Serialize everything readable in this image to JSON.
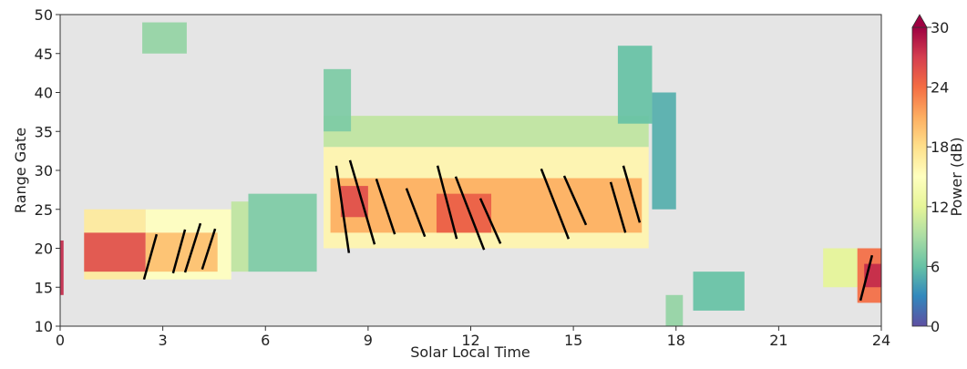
{
  "chart_data": {
    "type": "heatmap",
    "xlabel": "Solar Local Time",
    "ylabel": "Range Gate",
    "xlim": [
      0,
      24
    ],
    "xticks": [
      0,
      3,
      6,
      9,
      12,
      15,
      18,
      21,
      24
    ],
    "ylim": [
      10,
      50
    ],
    "yticks": [
      10,
      15,
      20,
      25,
      30,
      35,
      40,
      45,
      50
    ],
    "background": "#e5e5e5",
    "colorbar": {
      "label": "Power (dB)",
      "clim": [
        0,
        30
      ],
      "ticks": [
        0,
        6,
        12,
        18,
        24,
        30
      ],
      "extend": "max",
      "colormap": [
        "#5e4fa2",
        "#3288bd",
        "#66c2a5",
        "#abdda4",
        "#e6f598",
        "#ffffbf",
        "#fee08b",
        "#fdae61",
        "#f46d43",
        "#d53e4f",
        "#9e0142"
      ]
    },
    "cells": [
      {
        "x": [
          0,
          0.1
        ],
        "y": [
          14,
          21
        ],
        "value": 28
      },
      {
        "x": [
          0.7,
          2.5
        ],
        "y": [
          16,
          25
        ],
        "value": 17
      },
      {
        "x": [
          0.7,
          2.5
        ],
        "y": [
          17,
          22
        ],
        "value": 26
      },
      {
        "x": [
          2.5,
          5
        ],
        "y": [
          16,
          25
        ],
        "value": 15
      },
      {
        "x": [
          2.5,
          4.6
        ],
        "y": [
          17,
          22
        ],
        "value": 20
      },
      {
        "x": [
          5,
          5.5
        ],
        "y": [
          17,
          26
        ],
        "value": 10
      },
      {
        "x": [
          5.5,
          7.5
        ],
        "y": [
          17,
          27
        ],
        "value": 7
      },
      {
        "x": [
          2.4,
          3.7
        ],
        "y": [
          45,
          49
        ],
        "value": 8
      },
      {
        "x": [
          7.7,
          17.2
        ],
        "y": [
          33,
          37
        ],
        "value": 10
      },
      {
        "x": [
          7.7,
          17.2
        ],
        "y": [
          20,
          33
        ],
        "value": 16
      },
      {
        "x": [
          7.9,
          17
        ],
        "y": [
          22,
          29
        ],
        "value": 21
      },
      {
        "x": [
          8.2,
          9
        ],
        "y": [
          24,
          28
        ],
        "value": 26
      },
      {
        "x": [
          11,
          12.6
        ],
        "y": [
          22,
          27
        ],
        "value": 25
      },
      {
        "x": [
          7.7,
          8.5
        ],
        "y": [
          35,
          43
        ],
        "value": 7
      },
      {
        "x": [
          16.3,
          17.3
        ],
        "y": [
          36,
          46
        ],
        "value": 6
      },
      {
        "x": [
          17.3,
          18
        ],
        "y": [
          25,
          40
        ],
        "value": 5
      },
      {
        "x": [
          17.7,
          18.2
        ],
        "y": [
          10,
          14
        ],
        "value": 8
      },
      {
        "x": [
          18.5,
          20
        ],
        "y": [
          12,
          17
        ],
        "value": 6
      },
      {
        "x": [
          22.3,
          23.3
        ],
        "y": [
          15,
          20
        ],
        "value": 12
      },
      {
        "x": [
          23.3,
          24
        ],
        "y": [
          13,
          20
        ],
        "value": 24
      },
      {
        "x": [
          23.5,
          24
        ],
        "y": [
          15,
          18
        ],
        "value": 28
      }
    ],
    "lines": {
      "color": "#000000",
      "segments": [
        {
          "x": [
            2.45,
            2.82
          ],
          "y": [
            16.0,
            21.8
          ]
        },
        {
          "x": [
            3.3,
            3.65
          ],
          "y": [
            16.8,
            22.4
          ]
        },
        {
          "x": [
            3.65,
            4.1
          ],
          "y": [
            16.9,
            23.2
          ]
        },
        {
          "x": [
            4.15,
            4.53
          ],
          "y": [
            17.3,
            22.5
          ]
        },
        {
          "x": [
            8.07,
            8.44
          ],
          "y": [
            30.6,
            19.4
          ]
        },
        {
          "x": [
            8.47,
            9.19
          ],
          "y": [
            31.3,
            20.5
          ]
        },
        {
          "x": [
            9.24,
            9.78
          ],
          "y": [
            28.9,
            21.8
          ]
        },
        {
          "x": [
            10.12,
            10.66
          ],
          "y": [
            27.7,
            21.5
          ]
        },
        {
          "x": [
            11.03,
            11.59
          ],
          "y": [
            30.6,
            21.2
          ]
        },
        {
          "x": [
            11.56,
            12.39
          ],
          "y": [
            29.2,
            19.8
          ]
        },
        {
          "x": [
            12.28,
            12.87
          ],
          "y": [
            26.4,
            20.6
          ]
        },
        {
          "x": [
            14.06,
            14.86
          ],
          "y": [
            30.2,
            21.2
          ]
        },
        {
          "x": [
            14.73,
            15.37
          ],
          "y": [
            29.3,
            23.0
          ]
        },
        {
          "x": [
            16.09,
            16.52
          ],
          "y": [
            28.5,
            22.0
          ]
        },
        {
          "x": [
            16.46,
            16.94
          ],
          "y": [
            30.6,
            23.3
          ]
        },
        {
          "x": [
            23.39,
            23.73
          ],
          "y": [
            13.3,
            19.1
          ]
        }
      ]
    }
  }
}
